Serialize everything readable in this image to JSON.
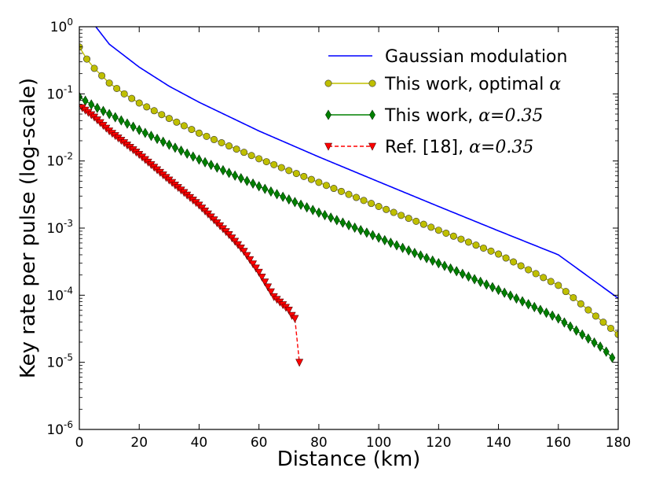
{
  "chart_data": {
    "type": "line",
    "title": "",
    "xlabel": "Distance (km)",
    "ylabel": "Key rate per pulse (log-scale)",
    "xlim": [
      0,
      180
    ],
    "ylim": [
      1e-06,
      1
    ],
    "yscale": "log",
    "x_ticks": [
      {
        "value": 0,
        "label": "0"
      },
      {
        "value": 20,
        "label": "20"
      },
      {
        "value": 40,
        "label": "40"
      },
      {
        "value": 60,
        "label": "60"
      },
      {
        "value": 80,
        "label": "80"
      },
      {
        "value": 100,
        "label": "100"
      },
      {
        "value": 120,
        "label": "120"
      },
      {
        "value": 140,
        "label": "140"
      },
      {
        "value": 160,
        "label": "160"
      },
      {
        "value": 180,
        "label": "180"
      }
    ],
    "y_ticks": [
      {
        "value": 1,
        "base": "10",
        "exp": "0"
      },
      {
        "value": 0.1,
        "base": "10",
        "exp": "-1"
      },
      {
        "value": 0.01,
        "base": "10",
        "exp": "-2"
      },
      {
        "value": 0.001,
        "base": "10",
        "exp": "-3"
      },
      {
        "value": 0.0001,
        "base": "10",
        "exp": "-4"
      },
      {
        "value": 1e-05,
        "base": "10",
        "exp": "-5"
      },
      {
        "value": 1e-06,
        "base": "10",
        "exp": "-6"
      }
    ],
    "legend_position": "top-right",
    "series": [
      {
        "name": "Gaussian modulation",
        "legend_parts": [
          {
            "t": "Gaussian modulation",
            "m": false
          }
        ],
        "color": "#0000ff",
        "marker": "none",
        "dash": "solid",
        "x": [
          5.5,
          10,
          20,
          30,
          40,
          60,
          80,
          100,
          120,
          140,
          160,
          180
        ],
        "y": [
          1.0,
          0.55,
          0.25,
          0.13,
          0.075,
          0.028,
          0.0115,
          0.0049,
          0.0021,
          0.00091,
          0.0004,
          9e-05
        ]
      },
      {
        "name": "This work, optimal α",
        "legend_parts": [
          {
            "t": "This work, optimal ",
            "m": false
          },
          {
            "t": "α",
            "m": true
          }
        ],
        "color": "#bfbf00",
        "line_color": "#bfbf00",
        "marker": "circle",
        "dash": "solid",
        "x": [
          0,
          180
        ],
        "y": [
          0.5,
          2.6e-05
        ],
        "knots": [
          [
            0,
            0.5
          ],
          [
            2.5,
            0.33
          ],
          [
            5,
            0.24
          ],
          [
            10,
            0.145
          ],
          [
            15,
            0.1
          ],
          [
            20,
            0.073
          ],
          [
            30,
            0.043
          ],
          [
            40,
            0.026
          ],
          [
            60,
            0.0108
          ],
          [
            80,
            0.0048
          ],
          [
            100,
            0.0021
          ],
          [
            120,
            0.00093
          ],
          [
            140,
            0.00041
          ],
          [
            160,
            0.00014
          ],
          [
            180,
            2.6e-05
          ]
        ],
        "step": 2.5
      },
      {
        "name": "This work, α=0.35",
        "legend_parts": [
          {
            "t": "This work, ",
            "m": false
          },
          {
            "t": "α=0.35",
            "m": true
          }
        ],
        "color": "#008000",
        "line_color": "#008000",
        "marker": "diamond",
        "dash": "solid",
        "knots": [
          [
            0,
            0.09
          ],
          [
            5,
            0.065
          ],
          [
            10,
            0.05
          ],
          [
            20,
            0.029
          ],
          [
            40,
            0.0105
          ],
          [
            60,
            0.0042
          ],
          [
            80,
            0.0017
          ],
          [
            100,
            0.00072
          ],
          [
            120,
            0.0003
          ],
          [
            140,
            0.00012
          ],
          [
            160,
            4.5e-05
          ],
          [
            175,
            1.6e-05
          ],
          [
            180,
            9.5e-06
          ]
        ],
        "step": 2,
        "x_end": 178
      },
      {
        "name": "Ref. [18], α=0.35",
        "legend_parts": [
          {
            "t": "Ref. [18], ",
            "m": false
          },
          {
            "t": "α=0.35",
            "m": true
          }
        ],
        "color": "#ff0000",
        "line_color": "#ff0000",
        "marker": "triangle-down",
        "dash": "dashed",
        "knots": [
          [
            1,
            0.062
          ],
          [
            5,
            0.045
          ],
          [
            10,
            0.028
          ],
          [
            20,
            0.0125
          ],
          [
            30,
            0.0052
          ],
          [
            40,
            0.0022
          ],
          [
            50,
            0.0008
          ],
          [
            55,
            0.00045
          ],
          [
            60,
            0.00022
          ],
          [
            65,
            9.5e-05
          ],
          [
            70,
            6e-05
          ],
          [
            71,
            5e-05
          ],
          [
            72,
            4.5e-05
          ],
          [
            73,
            3e-05
          ],
          [
            73.5,
            1e-05
          ]
        ],
        "points_x": [
          1,
          2,
          3,
          4,
          5,
          6,
          7,
          8,
          9,
          10,
          11,
          12,
          13,
          14,
          15,
          16,
          17,
          18,
          19,
          20,
          21,
          22,
          23,
          24,
          25,
          26,
          27,
          28,
          29,
          30,
          31,
          32,
          33,
          34,
          35,
          36,
          37,
          38,
          39,
          40,
          41,
          42,
          43,
          44,
          45,
          46,
          47,
          48,
          49,
          50,
          51,
          52,
          53,
          54,
          55,
          56,
          57,
          58,
          59,
          60,
          61,
          62,
          63,
          64,
          65,
          66,
          67,
          68,
          69,
          70,
          71,
          72,
          73.5
        ]
      }
    ]
  }
}
